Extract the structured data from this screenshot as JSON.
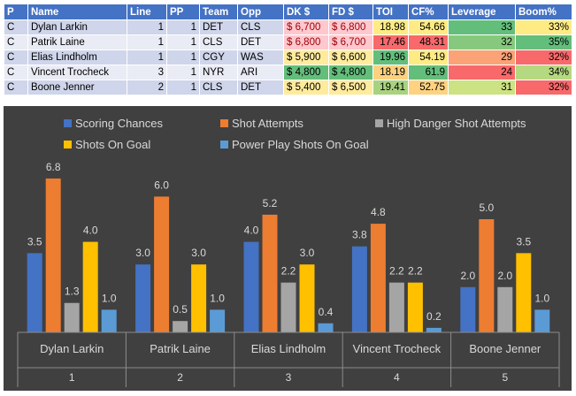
{
  "table": {
    "headers": [
      "P",
      "Name",
      "Line",
      "PP",
      "Team",
      "Opp",
      "DK $",
      "FD $",
      "TOI",
      "CF%",
      "Leverage",
      "Boom%"
    ],
    "rows": [
      {
        "pos": "C",
        "name": "Dylan Larkin",
        "line": "1",
        "pp": "1",
        "team": "DET",
        "opp": "CLS",
        "dk": "$ 6,700",
        "fd": "$ 6,800",
        "toi": "18.98",
        "cf": "54.66",
        "leverage": "33",
        "boom": "33%",
        "colors": {
          "dk": "#ffc7ce",
          "fd": "#ffc7ce",
          "toi": "#ffeb84",
          "cf": "#ffeb84",
          "leverage": "#63be7b",
          "boom": "#ffeb84"
        }
      },
      {
        "pos": "C",
        "name": "Patrik Laine",
        "line": "1",
        "pp": "1",
        "team": "CLS",
        "opp": "DET",
        "dk": "$ 6,800",
        "fd": "$ 6,700",
        "toi": "17.46",
        "cf": "48.31",
        "leverage": "32",
        "boom": "35%",
        "colors": {
          "dk": "#ffc7ce",
          "fd": "#ffc7ce",
          "toi": "#f8696b",
          "cf": "#f8696b",
          "leverage": "#86c97e",
          "boom": "#63be7b"
        }
      },
      {
        "pos": "C",
        "name": "Elias Lindholm",
        "line": "1",
        "pp": "1",
        "team": "CGY",
        "opp": "WAS",
        "dk": "$ 5,900",
        "fd": "$ 6,600",
        "toi": "19.96",
        "cf": "54.19",
        "leverage": "29",
        "boom": "32%",
        "colors": {
          "dk": "#ffeb9c",
          "fd": "#ffeb9c",
          "toi": "#63be7b",
          "cf": "#ffeb84",
          "leverage": "#fba276",
          "boom": "#f8696b"
        }
      },
      {
        "pos": "C",
        "name": "Vincent Trocheck",
        "line": "3",
        "pp": "1",
        "team": "NYR",
        "opp": "ARI",
        "dk": "$ 4,800",
        "fd": "$ 4,800",
        "toi": "18.19",
        "cf": "61.9",
        "leverage": "24",
        "boom": "34%",
        "colors": {
          "dk": "#63be7b",
          "fd": "#63be7b",
          "toi": "#fdd17f",
          "cf": "#63be7b",
          "leverage": "#f8696b",
          "boom": "#b5d980"
        }
      },
      {
        "pos": "C",
        "name": "Boone Jenner",
        "line": "2",
        "pp": "1",
        "team": "CLS",
        "opp": "DET",
        "dk": "$ 5,400",
        "fd": "$ 6,500",
        "toi": "19.41",
        "cf": "52.75",
        "leverage": "31",
        "boom": "32%",
        "colors": {
          "dk": "#ffeb9c",
          "fd": "#ffeb9c",
          "toi": "#a8d27f",
          "cf": "#fed280",
          "leverage": "#cde282",
          "boom": "#f8696b"
        }
      }
    ]
  },
  "chart_data": {
    "type": "bar",
    "title": "",
    "categories": [
      {
        "name": "Dylan Larkin",
        "index": "1"
      },
      {
        "name": "Patrik Laine",
        "index": "2"
      },
      {
        "name": "Elias Lindholm",
        "index": "3"
      },
      {
        "name": "Vincent Trocheck",
        "index": "4"
      },
      {
        "name": "Boone Jenner",
        "index": "5"
      }
    ],
    "series": [
      {
        "name": "Scoring Chances",
        "color": "#4472c4",
        "values": [
          3.5,
          3.0,
          4.0,
          3.8,
          2.0
        ],
        "labels": [
          "3.5",
          "3.0",
          "4.0",
          "3.8",
          "2.0"
        ]
      },
      {
        "name": "Shot Attempts",
        "color": "#ed7d31",
        "values": [
          6.8,
          6.0,
          5.2,
          4.8,
          5.0
        ],
        "labels": [
          "6.8",
          "6.0",
          "5.2",
          "4.8",
          "5.0"
        ]
      },
      {
        "name": "High Danger Shot Attempts",
        "color": "#a5a5a5",
        "values": [
          1.3,
          0.5,
          2.2,
          2.2,
          2.0
        ],
        "labels": [
          "1.3",
          "0.5",
          "2.2",
          "2.2",
          "2.0"
        ]
      },
      {
        "name": "Shots On Goal",
        "color": "#ffc000",
        "values": [
          4.0,
          3.0,
          3.0,
          2.2,
          3.5
        ],
        "labels": [
          "4.0",
          "3.0",
          "3.0",
          "2.2",
          "3.5"
        ]
      },
      {
        "name": "Power Play Shots On Goal",
        "color": "#5b9bd5",
        "values": [
          1.0,
          1.0,
          0.4,
          0.2,
          1.0
        ],
        "labels": [
          "1.0",
          "1.0",
          "0.4",
          "0.2",
          "1.0"
        ]
      }
    ],
    "ylim": [
      0,
      7.5
    ],
    "legend": "top",
    "grid": false,
    "background": "#404040"
  }
}
